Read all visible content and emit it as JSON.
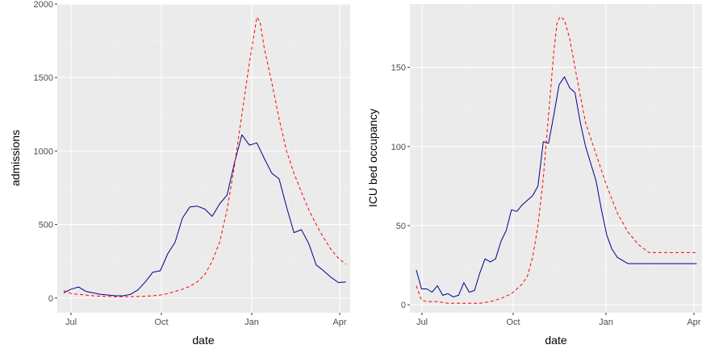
{
  "colors": {
    "panel_bg": "#ebebeb",
    "grid_major": "#ffffff",
    "grid_minor": "#f2f2f2",
    "observed": "#00008b",
    "model": "#ff0000",
    "tick_text": "#4d4d4d"
  },
  "chart_data": [
    {
      "type": "line",
      "xlabel": "date",
      "ylabel": "admissions",
      "x_ticks": [
        "Jul",
        "Oct",
        "Jan",
        "Apr"
      ],
      "y_ticks": [
        "0",
        "500",
        "1000",
        "1500",
        "2000"
      ],
      "xlim": [
        -6,
        270
      ],
      "ylim": [
        -100,
        2000
      ],
      "y_tick_values": [
        0,
        500,
        1000,
        1500,
        2000
      ],
      "grid": true,
      "legend": "none",
      "series": [
        {
          "style": "solid",
          "color": "#00008b",
          "x": [
            0,
            7,
            14,
            21,
            28,
            35,
            42,
            49,
            56,
            63,
            70,
            77,
            84,
            91,
            98,
            105,
            112,
            119,
            126,
            133,
            140,
            147,
            154,
            161,
            168,
            175,
            182,
            189,
            196,
            203,
            210,
            217,
            224,
            231,
            238,
            245,
            252,
            259,
            266
          ],
          "y": [
            35,
            60,
            75,
            45,
            35,
            25,
            20,
            15,
            15,
            25,
            55,
            110,
            175,
            185,
            300,
            380,
            545,
            620,
            625,
            605,
            555,
            640,
            700,
            920,
            1110,
            1040,
            1055,
            950,
            850,
            810,
            620,
            445,
            465,
            370,
            225,
            185,
            140,
            105,
            110
          ]
        },
        {
          "style": "dashed",
          "color": "#ff0000",
          "x": [
            0,
            7,
            14,
            21,
            28,
            35,
            42,
            49,
            56,
            63,
            70,
            77,
            84,
            91,
            98,
            105,
            112,
            119,
            126,
            133,
            140,
            147,
            154,
            161,
            168,
            175,
            182,
            185,
            189,
            196,
            203,
            210,
            217,
            224,
            231,
            238,
            245,
            252,
            259,
            266
          ],
          "y": [
            50,
            30,
            25,
            20,
            15,
            12,
            10,
            8,
            8,
            8,
            10,
            12,
            15,
            20,
            30,
            45,
            60,
            80,
            110,
            160,
            250,
            380,
            600,
            900,
            1250,
            1600,
            1910,
            1880,
            1700,
            1470,
            1220,
            1000,
            850,
            720,
            600,
            500,
            410,
            330,
            270,
            230
          ]
        }
      ]
    },
    {
      "type": "line",
      "xlabel": "date",
      "ylabel": "ICU bed occupancy",
      "x_ticks": [
        "Jul",
        "Oct",
        "Jan",
        "Apr"
      ],
      "y_ticks": [
        "0",
        "50",
        "100",
        "150"
      ],
      "xlim": [
        -6,
        270
      ],
      "ylim": [
        -5,
        190
      ],
      "y_tick_values": [
        0,
        50,
        100,
        150
      ],
      "grid": true,
      "legend": "none",
      "series": [
        {
          "style": "solid",
          "color": "#00008b",
          "x": [
            0,
            5,
            10,
            15,
            20,
            25,
            30,
            35,
            40,
            45,
            50,
            55,
            60,
            65,
            70,
            75,
            80,
            85,
            90,
            95,
            100,
            105,
            110,
            115,
            120,
            125,
            130,
            135,
            140,
            145,
            150,
            155,
            160,
            165,
            170,
            175,
            180,
            185,
            190,
            195,
            200,
            205,
            210,
            215,
            220,
            225,
            230,
            235,
            240,
            245,
            250,
            255,
            260,
            265
          ],
          "y": [
            22,
            10,
            10,
            8,
            12,
            6,
            7,
            5,
            6,
            14,
            8,
            9,
            20,
            29,
            27,
            29,
            40,
            47,
            60,
            59,
            63,
            66,
            69,
            75,
            103,
            102,
            120,
            139,
            144,
            137,
            134,
            115,
            100,
            89,
            78,
            60,
            44,
            35,
            30,
            28,
            26,
            26,
            26,
            26,
            26,
            26,
            26,
            26,
            26,
            26,
            26,
            26,
            26,
            26
          ]
        },
        {
          "style": "dashed",
          "color": "#ff0000",
          "x": [
            0,
            5,
            10,
            15,
            20,
            30,
            40,
            50,
            60,
            70,
            80,
            90,
            100,
            105,
            110,
            115,
            120,
            125,
            130,
            133,
            136,
            140,
            145,
            150,
            155,
            160,
            170,
            180,
            190,
            200,
            210,
            220,
            230,
            240,
            250,
            260,
            265
          ],
          "y": [
            12,
            3,
            2,
            2,
            2,
            1,
            1,
            1,
            1,
            2,
            4,
            7,
            13,
            18,
            30,
            50,
            80,
            120,
            160,
            178,
            182,
            180,
            168,
            150,
            132,
            115,
            95,
            75,
            58,
            46,
            38,
            33,
            33,
            33,
            33,
            33,
            33
          ]
        }
      ]
    }
  ]
}
